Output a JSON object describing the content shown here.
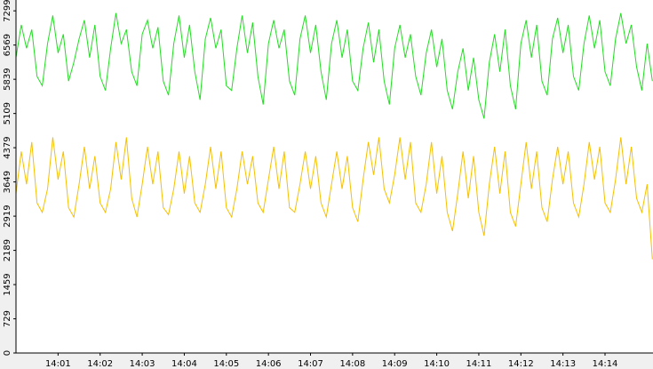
{
  "chart_data": {
    "type": "line",
    "x": [
      0,
      0.125,
      0.25,
      0.375,
      0.5,
      0.625,
      0.75,
      0.875,
      1,
      1.125,
      1.25,
      1.375,
      1.5,
      1.625,
      1.75,
      1.875,
      2,
      2.125,
      2.25,
      2.375,
      2.5,
      2.625,
      2.75,
      2.875,
      3,
      3.125,
      3.25,
      3.375,
      3.5,
      3.625,
      3.75,
      3.875,
      4,
      4.125,
      4.25,
      4.375,
      4.5,
      4.625,
      4.75,
      4.875,
      5,
      5.125,
      5.25,
      5.375,
      5.5,
      5.625,
      5.75,
      5.875,
      6,
      6.125,
      6.25,
      6.375,
      6.5,
      6.625,
      6.75,
      6.875,
      7,
      7.125,
      7.25,
      7.375,
      7.5,
      7.625,
      7.75,
      7.875,
      8,
      8.125,
      8.25,
      8.375,
      8.5,
      8.625,
      8.75,
      8.875,
      9,
      9.125,
      9.25,
      9.375,
      9.5,
      9.625,
      9.75,
      9.875,
      10,
      10.125,
      10.25,
      10.375,
      10.5,
      10.625,
      10.75,
      10.875,
      11,
      11.125,
      11.25,
      11.375,
      11.5,
      11.625,
      11.75,
      11.875,
      12,
      12.125,
      12.25,
      12.375,
      12.5,
      12.625,
      12.75,
      12.875,
      13,
      13.125,
      13.25,
      13.375,
      13.5,
      13.625,
      13.75,
      13.875,
      14,
      14.125,
      14.25,
      14.375,
      14.5,
      14.625,
      14.75,
      14.875,
      15,
      15.125
    ],
    "series": [
      {
        "color": "#22dd22",
        "values": [
          6300,
          7000,
          6500,
          6900,
          5900,
          5700,
          6600,
          7200,
          6400,
          6800,
          5800,
          6200,
          6700,
          7100,
          6300,
          7000,
          5900,
          5600,
          6500,
          7250,
          6600,
          6900,
          6000,
          5700,
          6800,
          7100,
          6500,
          6950,
          5800,
          5500,
          6600,
          7200,
          6300,
          7000,
          6000,
          5400,
          6700,
          7150,
          6500,
          6900,
          5700,
          5600,
          6500,
          7200,
          6400,
          7050,
          5900,
          5300,
          6600,
          7100,
          6500,
          6900,
          5800,
          5500,
          6700,
          7200,
          6400,
          7000,
          6000,
          5400,
          6600,
          7100,
          6300,
          6900,
          5800,
          5600,
          6500,
          7050,
          6200,
          6900,
          5800,
          5300,
          6500,
          7000,
          6300,
          6800,
          5900,
          5500,
          6400,
          6900,
          6100,
          6700,
          5600,
          5200,
          6000,
          6500,
          5600,
          6300,
          5400,
          5000,
          6200,
          6800,
          6000,
          6900,
          5700,
          5200,
          6600,
          7100,
          6300,
          7000,
          5800,
          5500,
          6700,
          7150,
          6400,
          7000,
          5900,
          5600,
          6600,
          7200,
          6500,
          7100,
          6000,
          5700,
          6700,
          7250,
          6600,
          7000,
          6100,
          5600,
          6600,
          5800
        ]
      },
      {
        "color": "#f5c000",
        "values": [
          3400,
          4300,
          3600,
          4500,
          3200,
          3000,
          3500,
          4600,
          3700,
          4300,
          3100,
          2900,
          3600,
          4400,
          3500,
          4200,
          3200,
          3000,
          3500,
          4500,
          3700,
          4600,
          3300,
          2900,
          3600,
          4400,
          3600,
          4300,
          3100,
          2950,
          3500,
          4300,
          3400,
          4200,
          3200,
          3000,
          3600,
          4400,
          3500,
          4300,
          3100,
          2900,
          3500,
          4300,
          3600,
          4200,
          3200,
          3000,
          3700,
          4400,
          3500,
          4300,
          3100,
          3000,
          3600,
          4300,
          3500,
          4200,
          3200,
          2900,
          3600,
          4300,
          3500,
          4200,
          3100,
          2800,
          3700,
          4500,
          3800,
          4600,
          3500,
          3200,
          3800,
          4600,
          3700,
          4500,
          3200,
          3000,
          3600,
          4500,
          3400,
          4200,
          3000,
          2600,
          3400,
          4300,
          3300,
          4200,
          3000,
          2500,
          3600,
          4400,
          3400,
          4300,
          3000,
          2700,
          3600,
          4500,
          3500,
          4300,
          3100,
          2800,
          3700,
          4400,
          3600,
          4300,
          3200,
          2900,
          3600,
          4500,
          3700,
          4400,
          3200,
          3000,
          3700,
          4600,
          3600,
          4400,
          3300,
          3000,
          3600,
          2000
        ]
      }
    ],
    "xlim": [
      0,
      15.14
    ],
    "xticks": [
      {
        "value": 1,
        "label": "14:01"
      },
      {
        "value": 2,
        "label": "14:02"
      },
      {
        "value": 3,
        "label": "14:03"
      },
      {
        "value": 4,
        "label": "14:04"
      },
      {
        "value": 5,
        "label": "14:05"
      },
      {
        "value": 6,
        "label": "14:06"
      },
      {
        "value": 7,
        "label": "14:07"
      },
      {
        "value": 8,
        "label": "14:08"
      },
      {
        "value": 9,
        "label": "14:09"
      },
      {
        "value": 10,
        "label": "14:10"
      },
      {
        "value": 11,
        "label": "14:11"
      },
      {
        "value": 12,
        "label": "14:12"
      },
      {
        "value": 13,
        "label": "14:13"
      },
      {
        "value": 14,
        "label": "14:14"
      }
    ],
    "ylim": [
      0,
      7530
    ],
    "yticks": [
      0,
      729,
      1459,
      2189,
      2919,
      3649,
      4379,
      5109,
      5839,
      6569,
      7299
    ]
  }
}
